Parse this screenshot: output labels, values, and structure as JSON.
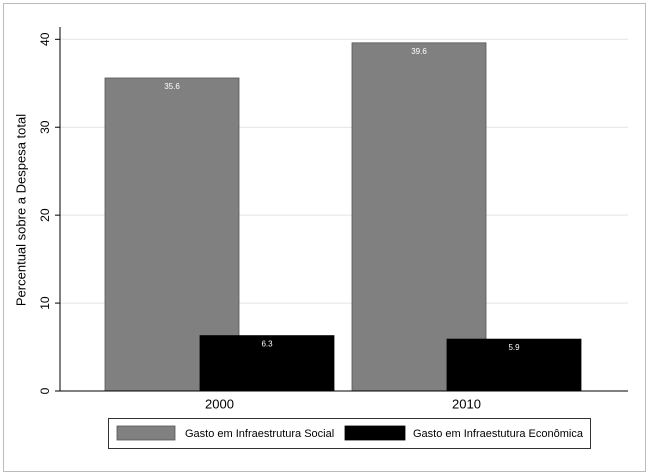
{
  "chart_data": {
    "type": "bar",
    "y_label": "Percentual sobre a Despesa total",
    "categories": [
      "2000",
      "2010"
    ],
    "series": [
      {
        "name": "Gasto em Infraestrutura Social",
        "color": "#808080",
        "values": [
          35.6,
          39.6
        ]
      },
      {
        "name": "Gasto em Infraestutura Econômica",
        "color": "#000000",
        "values": [
          6.3,
          5.9
        ]
      }
    ],
    "ylim": [
      0,
      41.4
    ],
    "yticks": [
      0,
      10,
      20,
      30,
      40
    ],
    "grid": true,
    "legend": "bottom"
  }
}
